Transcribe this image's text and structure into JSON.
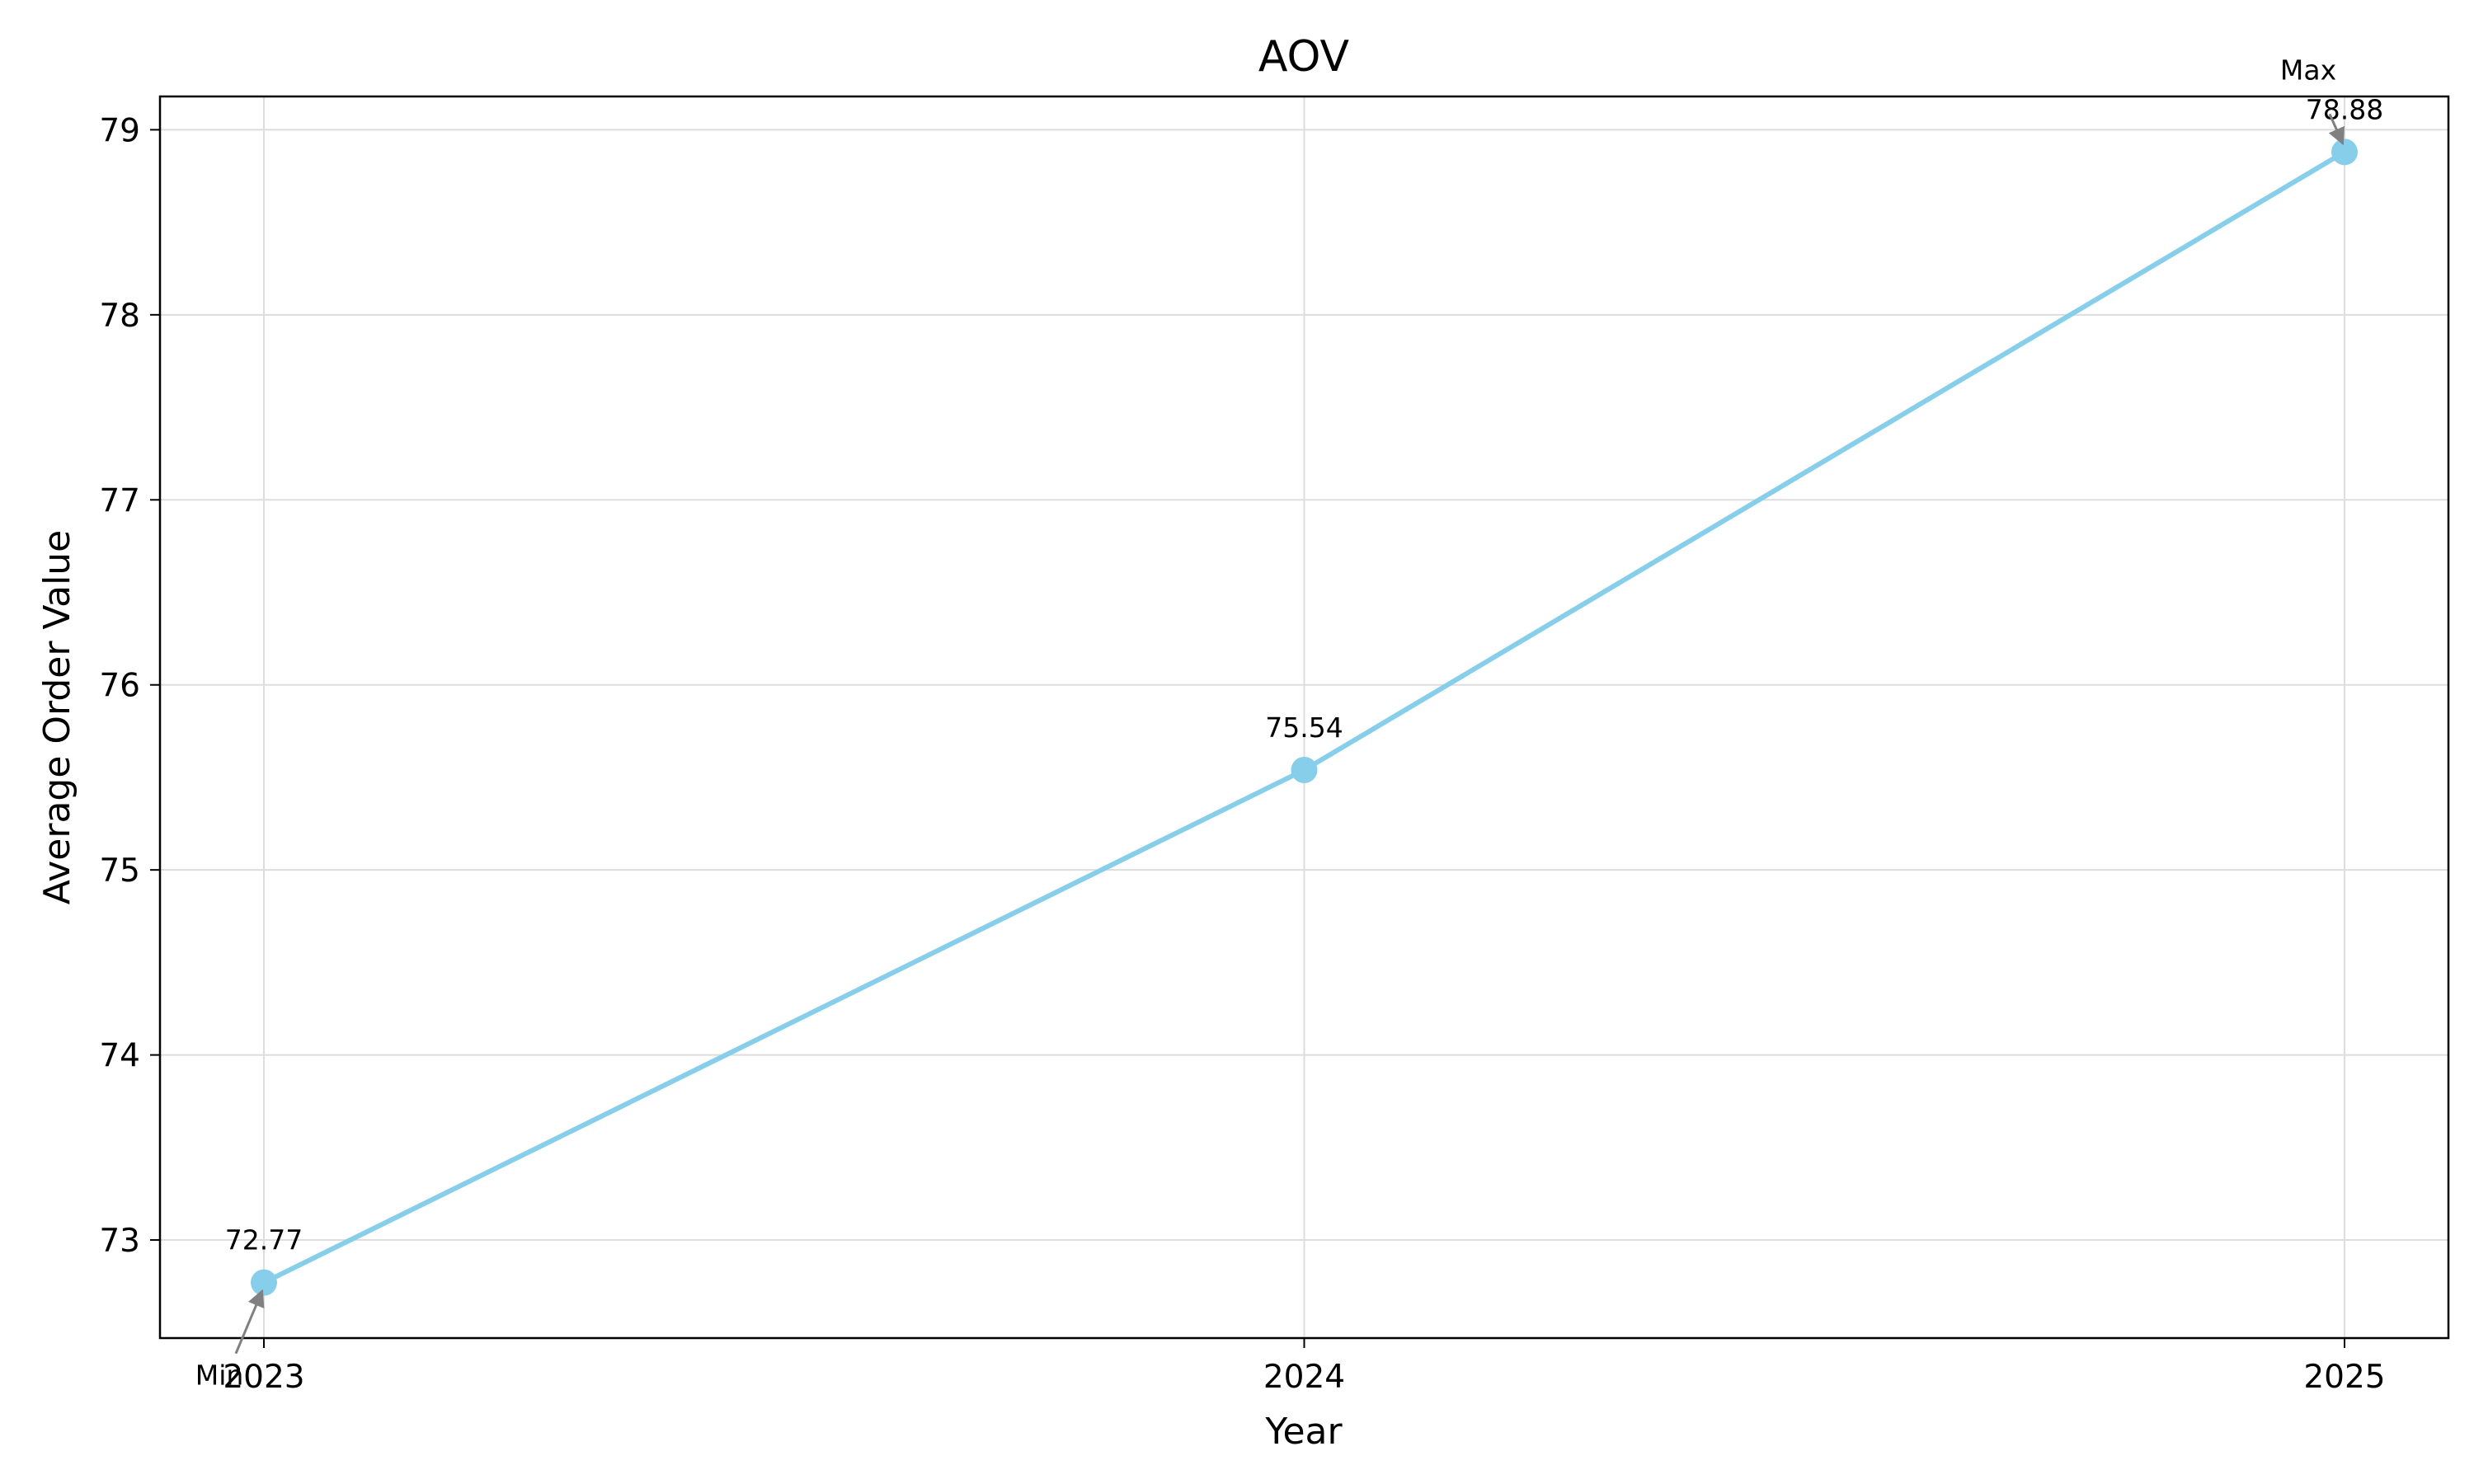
{
  "chart_data": {
    "type": "line",
    "title": "AOV",
    "xlabel": "Year",
    "ylabel": "Average Order Value",
    "x": [
      "2023",
      "2024",
      "2025"
    ],
    "series": [
      {
        "values": [
          72.77,
          75.54,
          78.88
        ],
        "color": "#87CEEB"
      }
    ],
    "data_labels": [
      "72.77",
      "75.54",
      "78.88"
    ],
    "yticks": [
      "73",
      "74",
      "75",
      "76",
      "77",
      "78",
      "79"
    ],
    "ylim": [
      72.47,
      79.18
    ],
    "grid": true,
    "annotations": [
      {
        "text": "Max",
        "target_index": 2
      },
      {
        "text": "Min",
        "target_index": 0
      }
    ]
  }
}
